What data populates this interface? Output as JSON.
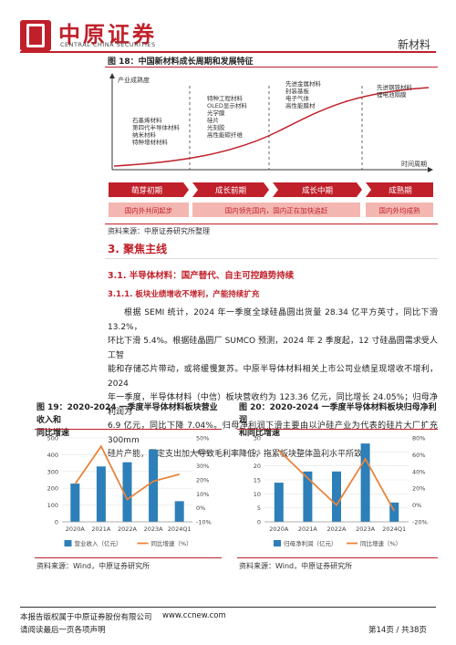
{
  "header": {
    "brand_cn": "中原证券",
    "brand_en": "CENTRAL CHINA SECURITIES",
    "section": "新材料"
  },
  "figure18": {
    "title": "图 18：中国新材料成长周期和发展特征",
    "ylabel": "产业成熟度",
    "xlabel": "时间周期",
    "stage1_items": [
      "石墨烯材料",
      "第四代半导体材料",
      "纳米材料",
      "特种增材材料"
    ],
    "stage2_items": [
      "特种工程材料",
      "OLED显示材料",
      "光学膜",
      "硅片",
      "光刻胶",
      "高性能碳纤维"
    ],
    "stage3_items": [
      "先进金属材料",
      "封装基板",
      "电子气体",
      "高性能膜材"
    ],
    "stage4_items": [
      "先进钢铁材料",
      "锂电池隔膜"
    ],
    "stages": [
      "萌芽初期",
      "成长前期",
      "成长中期",
      "成熟期"
    ],
    "status": [
      "国内外共同起步",
      "国内领先国内，国内正在加快追赶",
      "国内外均成熟"
    ],
    "source": "资料来源：中原证券研究所整理"
  },
  "section3": {
    "title": "3. 聚焦主线",
    "sub1": "3.1. 半导体材料：国产替代、自主可控趋势持续",
    "sub2": "3.1.1. 板块业绩增收不增利，产能持续扩充",
    "paragraph": [
      "根据 SEMI 统计，2024 年一季度全球硅晶圆出货量 28.34 亿平方英寸，同比下滑 13.2%，",
      "环比下滑 5.4%。根据硅晶圆厂 SUMCO 预测，2024 年 2 季度起，12 寸硅晶圆需求受人工智",
      "能和存储芯片带动，或将缓慢复苏。中原半导体材料相关上市公司业绩呈现增收不增利，2024",
      "年一季度，半导体材料（中信）板块营收约为 123.36 亿元，同比增长 24.05%；归母净利润为",
      "6.9 亿元，同比下降 7.04%。归母净利润下滑主要由以沪硅产业为代表的硅片大厂扩充 300mm",
      "硅片产能，固定支出加大导致毛利率降低，拖累板块整体盈利水平所致。"
    ]
  },
  "figure19": {
    "title_line1": "图 19：2020-2024 一季度半导体材料板块营业收入和",
    "title_line2": "同比增速",
    "legend_bar": "营业收入（亿元）",
    "legend_line": "同比增速（%）",
    "source": "资料来源：Wind，中原证券研究所"
  },
  "figure20": {
    "title_line1": "图 20：2020-2024 一季度半导体材料板块归母净利润",
    "title_line2": "和同比增速",
    "legend_bar": "归母净利润（亿元）",
    "legend_line": "同比增速（%）",
    "source": "资料来源：Wind，中原证券研究所"
  },
  "chart_data": [
    {
      "type": "bar",
      "categories": [
        "2020A",
        "2021A",
        "2022A",
        "2023A",
        "2024Q1"
      ],
      "series": [
        {
          "name": "营业收入（亿元）",
          "type": "bar",
          "axis": "left",
          "values": [
            228,
            330,
            355,
            430,
            123
          ]
        },
        {
          "name": "同比增速（%）",
          "type": "line",
          "axis": "right",
          "values": [
            17,
            44,
            6,
            19,
            24
          ]
        }
      ],
      "y_left_ticks": [
        "0",
        "100",
        "200",
        "300",
        "400",
        "500"
      ],
      "y_right_ticks": [
        "-10%",
        "0%",
        "10%",
        "20%",
        "30%",
        "40%",
        "50%"
      ],
      "ylim_left": [
        0,
        500
      ],
      "ylim_right": [
        -10,
        50
      ],
      "bar_color": "#2c7fb8",
      "line_color": "#e8843c"
    },
    {
      "type": "bar",
      "categories": [
        "2020A",
        "2021A",
        "2022A",
        "2023A",
        "2024Q1"
      ],
      "series": [
        {
          "name": "归母净利润（亿元）",
          "type": "bar",
          "axis": "left",
          "values": [
            14,
            18,
            18,
            28,
            6.9
          ]
        },
        {
          "name": "同比增速（%）",
          "type": "line",
          "axis": "right",
          "values": [
            65,
            32,
            0,
            55,
            -7
          ]
        }
      ],
      "y_left_ticks": [
        "0",
        "5",
        "10",
        "15",
        "20",
        "25",
        "30"
      ],
      "y_right_ticks": [
        "-20%",
        "0%",
        "20%",
        "40%",
        "60%",
        "80%"
      ],
      "ylim_left": [
        0,
        30
      ],
      "ylim_right": [
        -20,
        80
      ],
      "bar_color": "#2c7fb8",
      "line_color": "#e8843c"
    }
  ],
  "footer": {
    "left1": "本报告版权属于中原证券股份有限公司",
    "url": "www.ccnew.com",
    "left2": "请阅读最后一页各项声明",
    "page": "第14页 / 共38页"
  }
}
